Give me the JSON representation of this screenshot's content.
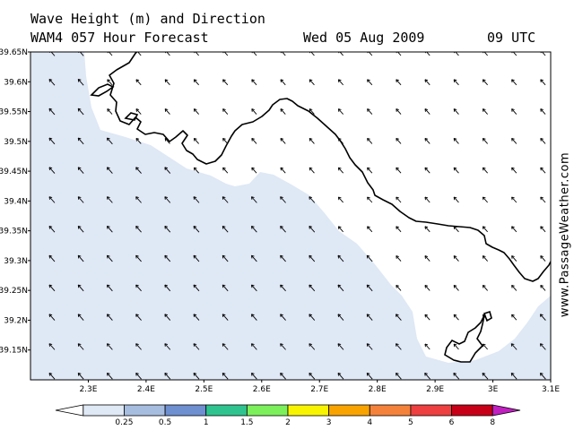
{
  "header": {
    "title": "Wave Height (m) and Direction",
    "subtitle": "WAM4 057 Hour Forecast",
    "date": "Wed 05 Aug 2009",
    "time": "09 UTC"
  },
  "credit": "www.PassageWeather.com",
  "colors": {
    "land": "#ffffff",
    "sea_low": "#dfe8f5",
    "coast": "#000000",
    "arrow": "#000000"
  },
  "icons": [
    "wave-direction-arrow-icon",
    "coastline",
    "island-icon"
  ],
  "chart_data": {
    "type": "map",
    "x_axis": {
      "unit": "E",
      "range": [
        2.2,
        3.1
      ],
      "ticks": [
        "2.3E",
        "2.4E",
        "2.5E",
        "2.6E",
        "2.7E",
        "2.8E",
        "2.9E",
        "3E",
        "3.1E"
      ]
    },
    "y_axis": {
      "unit": "N",
      "range": [
        39.1,
        39.65
      ],
      "ticks": [
        "39.65N",
        "39.6N",
        "39.55N",
        "39.5N",
        "39.45N",
        "39.4N",
        "39.35N",
        "39.3N",
        "39.25N",
        "39.2N",
        "39.15N"
      ]
    },
    "wave_direction": "arrows pointing north-west",
    "wave_height_class": "0.25-0.5",
    "legend": {
      "labels": [
        "0.25",
        "0.5",
        "1",
        "1.5",
        "2",
        "3",
        "4",
        "5",
        "6",
        "8"
      ],
      "colors": [
        "#ffffff",
        "#dfe8f5",
        "#a7bde0",
        "#6e8fd0",
        "#2fc48f",
        "#7cf05a",
        "#f8f400",
        "#f8a300",
        "#f5823a",
        "#ee4040",
        "#c70018",
        "#c020c0"
      ]
    }
  }
}
